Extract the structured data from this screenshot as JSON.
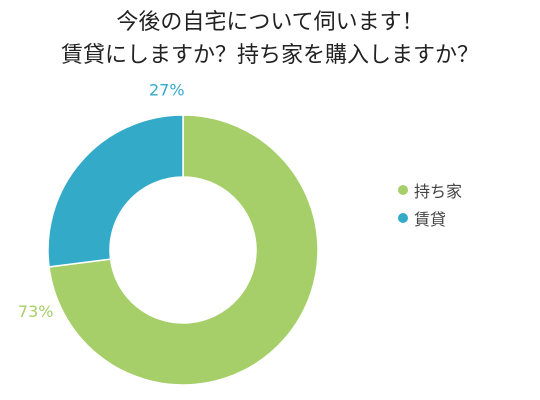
{
  "title_lines": [
    "今後の自宅について伺います！",
    "賃貸にしますか？持ち家を購入しますか？"
  ],
  "colors": {
    "持ち家": "#a6cf6a",
    "賃貸": "#33aac8"
  },
  "chart_data": {
    "type": "pie",
    "donut": true,
    "title": "今後の自宅について伺います！ 賃貸にしますか？持ち家を購入しますか？",
    "series": [
      {
        "name": "持ち家",
        "value": 73,
        "label": "73%",
        "color": "#a6cf6a"
      },
      {
        "name": "賃貸",
        "value": 27,
        "label": "27%",
        "color": "#33aac8"
      }
    ],
    "legend_position": "right"
  }
}
